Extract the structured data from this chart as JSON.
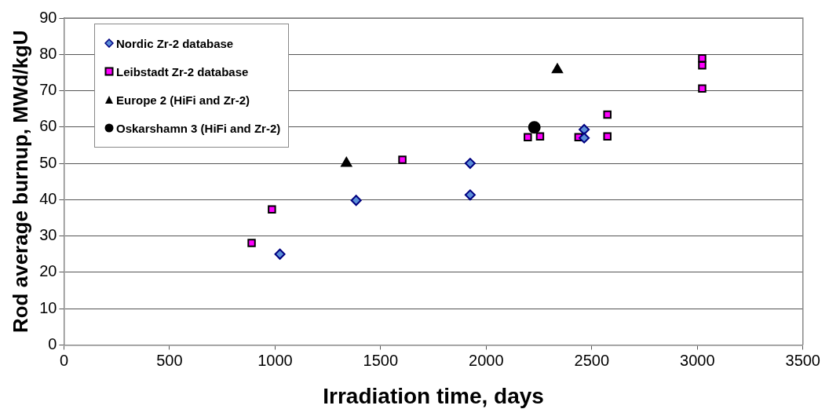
{
  "chart_data": {
    "type": "scatter",
    "xlabel": "Irradiation time, days",
    "ylabel": "Rod average burnup, MWd/kgU",
    "xlim": [
      0,
      3500
    ],
    "xticks": [
      0,
      500,
      1000,
      1500,
      2000,
      2500,
      3000,
      3500
    ],
    "ylim": [
      0,
      90
    ],
    "yticks": [
      0,
      10,
      20,
      30,
      40,
      50,
      60,
      70,
      80,
      90
    ],
    "grid": "y",
    "legend": "top left",
    "series": [
      {
        "name": "Nordic Zr-2 database",
        "color": "#5b8fd8",
        "marker": "diamond",
        "x": [
          1023,
          1384,
          1924,
          1924,
          2464,
          2464
        ],
        "values": [
          25,
          39.8,
          50,
          41.3,
          59.3,
          57
        ]
      },
      {
        "name": "Leibstadt Zr-2 database",
        "color": "#ff00ff",
        "marker": "square",
        "x": [
          889,
          985,
          1603,
          2197,
          2255,
          2437,
          2574,
          2574,
          3023,
          3023,
          3023
        ],
        "values": [
          28.1,
          37.3,
          51,
          57.2,
          57.4,
          57.2,
          57.4,
          63.4,
          70.6,
          77,
          78.9
        ]
      },
      {
        "name": "Europe 2 (HiFi and Zr-2)",
        "color": "#000000",
        "marker": "triangle",
        "x": [
          1338,
          2337
        ],
        "values": [
          50,
          75.8
        ]
      },
      {
        "name": "Oskarshamn 3 (HiFi and Zr-2)",
        "color": "#000000",
        "marker": "circle",
        "x": [
          2228
        ],
        "values": [
          59.9
        ]
      }
    ]
  }
}
